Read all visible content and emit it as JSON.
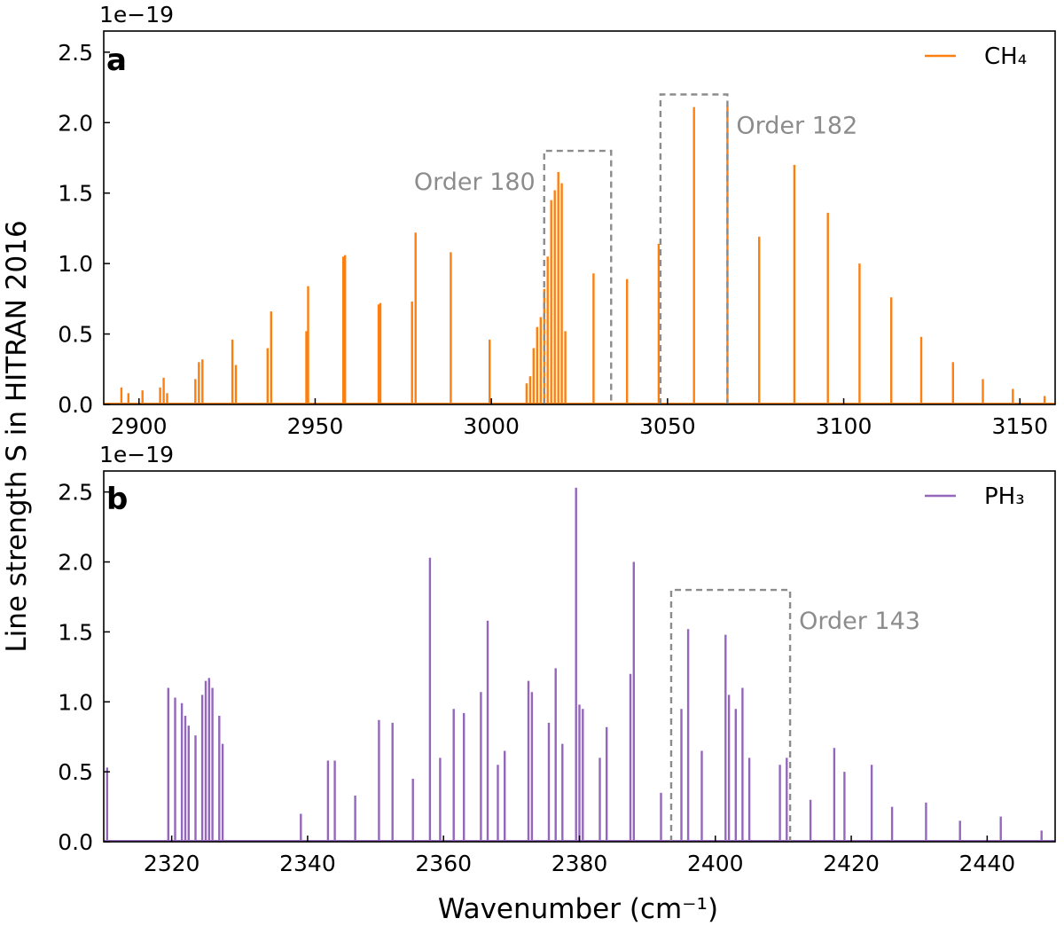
{
  "figure": {
    "ylabel": "Line strength S in HITRAN 2016",
    "xlabel": "Wavenumber (cm⁻¹)"
  },
  "chart_data": [
    {
      "type": "line",
      "panel": "a",
      "scale_label": "1e−19",
      "series": [
        {
          "name": "CH₄",
          "color": "#ff7f0e"
        }
      ],
      "legend": {
        "text": "CH₄",
        "placement": "top-right"
      },
      "xlim": [
        2890,
        3160
      ],
      "ylim": [
        0,
        2.65
      ],
      "xticks": [
        2900,
        2950,
        3000,
        3050,
        3100,
        3150
      ],
      "xtick_labels": [
        "2900",
        "2950",
        "3000",
        "3050",
        "3100",
        "3150"
      ],
      "yticks": [
        0,
        0.5,
        1.0,
        1.5,
        2.0,
        2.5
      ],
      "ytick_labels": [
        "0.0",
        "0.5",
        "1.0",
        "1.5",
        "2.0",
        "2.5"
      ],
      "lines": [
        [
          2895,
          0.12
        ],
        [
          2897,
          0.08
        ],
        [
          2901,
          0.1
        ],
        [
          2906,
          0.12
        ],
        [
          2907,
          0.19
        ],
        [
          2908,
          0.08
        ],
        [
          2916,
          0.18
        ],
        [
          2917,
          0.3
        ],
        [
          2918,
          0.32
        ],
        [
          2926.5,
          0.46
        ],
        [
          2927.5,
          0.28
        ],
        [
          2936.5,
          0.4
        ],
        [
          2937.5,
          0.66
        ],
        [
          2947.5,
          0.52
        ],
        [
          2948,
          0.84
        ],
        [
          2958,
          1.05
        ],
        [
          2958.5,
          1.06
        ],
        [
          2968,
          0.71
        ],
        [
          2968.5,
          0.72
        ],
        [
          2977.5,
          0.73
        ],
        [
          2978.5,
          1.22
        ],
        [
          2988.5,
          1.08
        ],
        [
          2999.5,
          0.46
        ],
        [
          3010,
          0.15
        ],
        [
          3011,
          0.2
        ],
        [
          3012,
          0.4
        ],
        [
          3013,
          0.55
        ],
        [
          3014,
          0.62
        ],
        [
          3015,
          0.82
        ],
        [
          3016,
          1.05
        ],
        [
          3017,
          1.45
        ],
        [
          3018,
          1.52
        ],
        [
          3019,
          1.65
        ],
        [
          3020,
          1.57
        ],
        [
          3021,
          0.52
        ],
        [
          3029,
          0.93
        ],
        [
          3038.5,
          0.89
        ],
        [
          3047.5,
          1.14
        ],
        [
          3057.5,
          2.11
        ],
        [
          3067,
          2.12
        ],
        [
          3076,
          1.19
        ],
        [
          3086,
          1.7
        ],
        [
          3095.5,
          1.36
        ],
        [
          3104.5,
          1.0
        ],
        [
          3113.5,
          0.76
        ],
        [
          3122,
          0.48
        ],
        [
          3131,
          0.3
        ],
        [
          3139.5,
          0.18
        ],
        [
          3148,
          0.11
        ],
        [
          3157,
          0.06
        ]
      ],
      "orders": [
        {
          "label": "Order 180",
          "x0": 3015,
          "x1": 3034,
          "y": 1.8,
          "label_side": "left"
        },
        {
          "label": "Order 182",
          "x0": 3048,
          "x1": 3067,
          "y": 2.2,
          "label_side": "right"
        }
      ]
    },
    {
      "type": "line",
      "panel": "b",
      "scale_label": "1e−19",
      "series": [
        {
          "name": "PH₃",
          "color": "#9467bd"
        }
      ],
      "legend": {
        "text": "PH₃",
        "placement": "top-right"
      },
      "xlim": [
        2310,
        2450
      ],
      "ylim": [
        0,
        2.65
      ],
      "xticks": [
        2320,
        2340,
        2360,
        2380,
        2400,
        2420,
        2440
      ],
      "xtick_labels": [
        "2320",
        "2340",
        "2360",
        "2380",
        "2400",
        "2420",
        "2440"
      ],
      "yticks": [
        0,
        0.5,
        1.0,
        1.5,
        2.0,
        2.5
      ],
      "ytick_labels": [
        "0.0",
        "0.5",
        "1.0",
        "1.5",
        "2.0",
        "2.5"
      ],
      "lines": [
        [
          2310.5,
          0.53
        ],
        [
          2319.5,
          1.1
        ],
        [
          2320.5,
          1.03
        ],
        [
          2321.5,
          0.99
        ],
        [
          2322,
          0.9
        ],
        [
          2322.5,
          0.83
        ],
        [
          2323.5,
          0.76
        ],
        [
          2324.5,
          1.05
        ],
        [
          2325,
          1.15
        ],
        [
          2325.5,
          1.17
        ],
        [
          2326,
          1.1
        ],
        [
          2327,
          0.9
        ],
        [
          2327.5,
          0.7
        ],
        [
          2339,
          0.2
        ],
        [
          2343,
          0.58
        ],
        [
          2344,
          0.58
        ],
        [
          2347,
          0.33
        ],
        [
          2350.5,
          0.87
        ],
        [
          2352.5,
          0.85
        ],
        [
          2355.5,
          0.45
        ],
        [
          2358,
          2.03
        ],
        [
          2359.5,
          0.6
        ],
        [
          2361.5,
          0.95
        ],
        [
          2363,
          0.92
        ],
        [
          2365.5,
          1.07
        ],
        [
          2366.5,
          1.58
        ],
        [
          2368,
          0.55
        ],
        [
          2369,
          0.65
        ],
        [
          2372.5,
          1.15
        ],
        [
          2373,
          1.07
        ],
        [
          2375.5,
          0.85
        ],
        [
          2376.5,
          1.24
        ],
        [
          2377.5,
          0.7
        ],
        [
          2379.5,
          2.53
        ],
        [
          2380,
          0.98
        ],
        [
          2380.5,
          0.95
        ],
        [
          2383,
          0.6
        ],
        [
          2384,
          0.82
        ],
        [
          2387.5,
          1.2
        ],
        [
          2388,
          2.0
        ],
        [
          2392,
          0.35
        ],
        [
          2395,
          0.95
        ],
        [
          2396,
          1.52
        ],
        [
          2398,
          0.65
        ],
        [
          2401.5,
          1.48
        ],
        [
          2402,
          1.05
        ],
        [
          2403,
          0.95
        ],
        [
          2404,
          1.1
        ],
        [
          2405,
          0.6
        ],
        [
          2409.5,
          0.55
        ],
        [
          2410.5,
          0.6
        ],
        [
          2414,
          0.3
        ],
        [
          2417.5,
          0.67
        ],
        [
          2419,
          0.5
        ],
        [
          2423,
          0.55
        ],
        [
          2426,
          0.25
        ],
        [
          2431,
          0.28
        ],
        [
          2436,
          0.15
        ],
        [
          2442,
          0.18
        ],
        [
          2448,
          0.08
        ]
      ],
      "orders": [
        {
          "label": "Order 143",
          "x0": 2393.5,
          "x1": 2411,
          "y": 1.8,
          "label_side": "right"
        }
      ]
    }
  ]
}
